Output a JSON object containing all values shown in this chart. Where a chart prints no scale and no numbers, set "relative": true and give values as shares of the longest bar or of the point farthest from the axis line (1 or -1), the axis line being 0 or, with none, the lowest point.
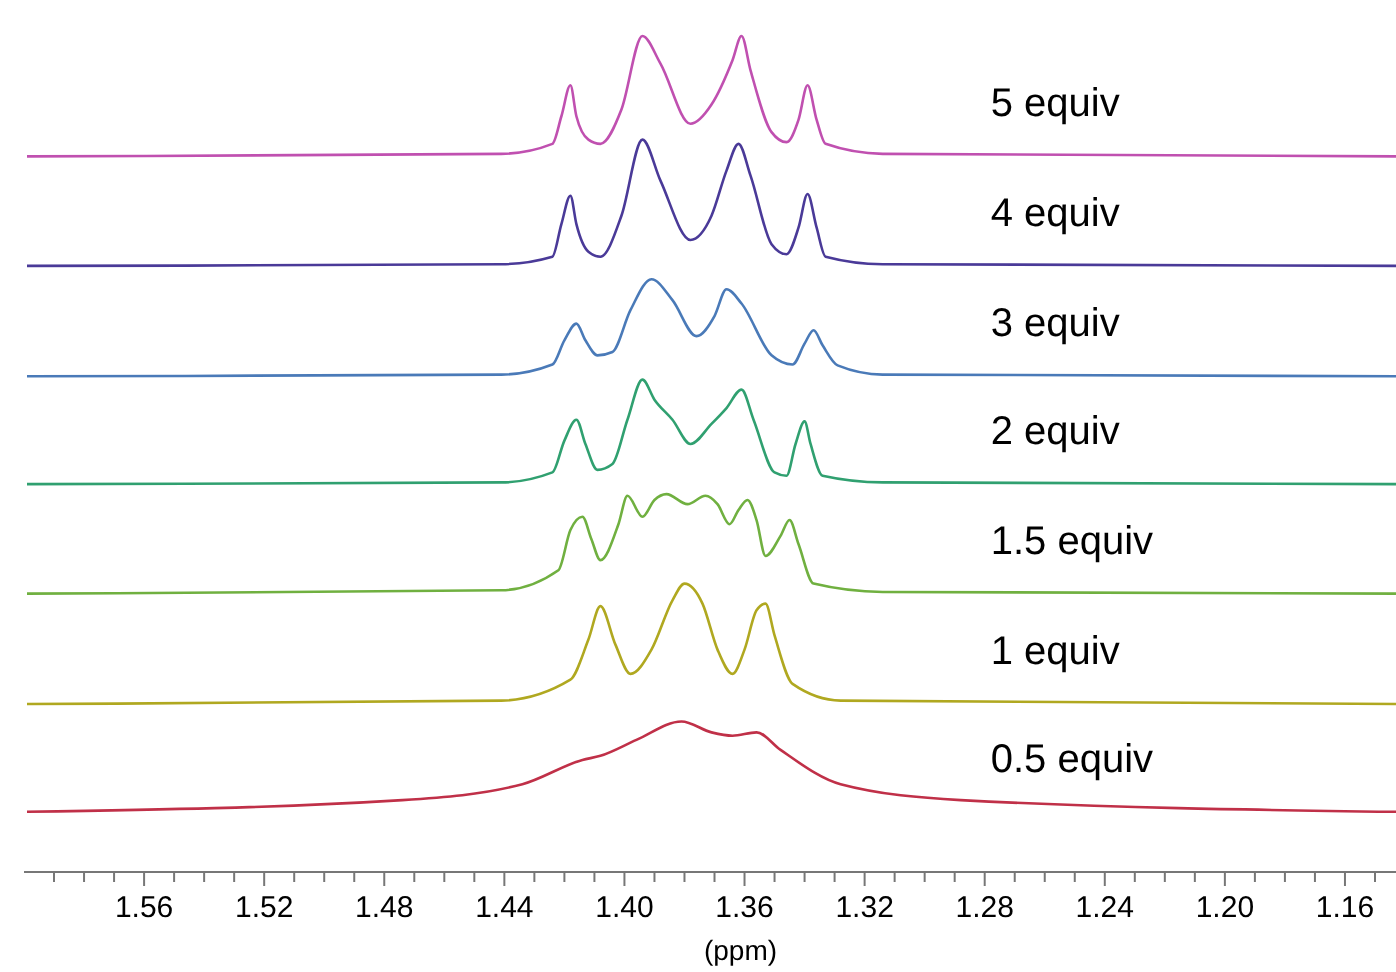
{
  "chart_data": {
    "type": "line",
    "relative": true,
    "xlabel": "(ppm)",
    "xlim": [
      1.6,
      1.143
    ],
    "xticks": [
      {
        "value": 1.59,
        "label": null
      },
      {
        "value": 1.58,
        "label": null
      },
      {
        "value": 1.57,
        "label": null
      },
      {
        "value": 1.56,
        "label": "1.56"
      },
      {
        "value": 1.55,
        "label": null
      },
      {
        "value": 1.54,
        "label": null
      },
      {
        "value": 1.53,
        "label": null
      },
      {
        "value": 1.52,
        "label": "1.52"
      },
      {
        "value": 1.51,
        "label": null
      },
      {
        "value": 1.5,
        "label": null
      },
      {
        "value": 1.49,
        "label": null
      },
      {
        "value": 1.48,
        "label": "1.48"
      },
      {
        "value": 1.47,
        "label": null
      },
      {
        "value": 1.46,
        "label": null
      },
      {
        "value": 1.45,
        "label": null
      },
      {
        "value": 1.44,
        "label": "1.44"
      },
      {
        "value": 1.43,
        "label": null
      },
      {
        "value": 1.42,
        "label": null
      },
      {
        "value": 1.41,
        "label": null
      },
      {
        "value": 1.4,
        "label": "1.40"
      },
      {
        "value": 1.39,
        "label": null
      },
      {
        "value": 1.38,
        "label": null
      },
      {
        "value": 1.37,
        "label": null
      },
      {
        "value": 1.36,
        "label": "1.36"
      },
      {
        "value": 1.35,
        "label": null
      },
      {
        "value": 1.34,
        "label": null
      },
      {
        "value": 1.33,
        "label": null
      },
      {
        "value": 1.32,
        "label": "1.32"
      },
      {
        "value": 1.31,
        "label": null
      },
      {
        "value": 1.3,
        "label": null
      },
      {
        "value": 1.29,
        "label": null
      },
      {
        "value": 1.28,
        "label": "1.28"
      },
      {
        "value": 1.27,
        "label": null
      },
      {
        "value": 1.26,
        "label": null
      },
      {
        "value": 1.25,
        "label": null
      },
      {
        "value": 1.24,
        "label": "1.24"
      },
      {
        "value": 1.23,
        "label": null
      },
      {
        "value": 1.22,
        "label": null
      },
      {
        "value": 1.21,
        "label": null
      },
      {
        "value": 1.2,
        "label": "1.20"
      },
      {
        "value": 1.19,
        "label": null
      },
      {
        "value": 1.18,
        "label": null
      },
      {
        "value": 1.17,
        "label": null
      },
      {
        "value": 1.16,
        "label": "1.16"
      },
      {
        "value": 1.15,
        "label": null
      }
    ],
    "tick_labels": "x",
    "line_style": "solid",
    "series": [
      {
        "name": "5 equiv",
        "color": "#c050b0",
        "x": [
          1.599,
          1.441,
          1.424,
          1.421,
          1.418,
          1.416,
          1.412,
          1.408,
          1.401,
          1.394,
          1.388,
          1.378,
          1.371,
          1.364,
          1.361,
          1.358,
          1.351,
          1.346,
          1.342,
          1.339,
          1.336,
          1.333,
          1.314,
          1.143
        ],
        "values": [
          0.856,
          0.859,
          0.871,
          0.904,
          0.941,
          0.904,
          0.876,
          0.871,
          0.912,
          1,
          0.967,
          0.895,
          0.918,
          0.971,
          1,
          0.959,
          0.885,
          0.873,
          0.9,
          0.941,
          0.9,
          0.871,
          0.859,
          0.856
        ]
      },
      {
        "name": "4 equiv",
        "color": "#4a3a98",
        "x": [
          1.599,
          1.441,
          1.424,
          1.421,
          1.418,
          1.416,
          1.412,
          1.408,
          1.401,
          1.394,
          1.388,
          1.378,
          1.371,
          1.366,
          1.362,
          1.358,
          1.351,
          1.346,
          1.342,
          1.339,
          1.336,
          1.333,
          1.314,
          1.143
        ],
        "values": [
          0.725,
          0.727,
          0.736,
          0.775,
          0.809,
          0.775,
          0.742,
          0.736,
          0.785,
          0.876,
          0.827,
          0.756,
          0.785,
          0.839,
          0.871,
          0.833,
          0.751,
          0.739,
          0.771,
          0.811,
          0.771,
          0.736,
          0.727,
          0.725
        ]
      },
      {
        "name": "3 equiv",
        "color": "#4a7ab8",
        "x": [
          1.599,
          1.441,
          1.424,
          1.42,
          1.416,
          1.413,
          1.409,
          1.404,
          1.398,
          1.391,
          1.384,
          1.376,
          1.37,
          1.366,
          1.361,
          1.351,
          1.344,
          1.34,
          1.337,
          1.334,
          1.329,
          1.314,
          1.143
        ],
        "values": [
          0.593,
          0.595,
          0.607,
          0.636,
          0.656,
          0.636,
          0.618,
          0.622,
          0.672,
          0.709,
          0.684,
          0.641,
          0.665,
          0.697,
          0.68,
          0.618,
          0.607,
          0.632,
          0.648,
          0.63,
          0.606,
          0.595,
          0.593
        ]
      },
      {
        "name": "2 equiv",
        "color": "#30a070",
        "x": [
          1.599,
          1.441,
          1.424,
          1.42,
          1.416,
          1.413,
          1.409,
          1.404,
          1.399,
          1.394,
          1.39,
          1.384,
          1.378,
          1.371,
          1.366,
          1.361,
          1.357,
          1.35,
          1.346,
          1.343,
          1.34,
          1.338,
          1.334,
          1.314,
          1.143
        ],
        "values": [
          0.464,
          0.466,
          0.478,
          0.516,
          0.541,
          0.512,
          0.481,
          0.488,
          0.541,
          0.589,
          0.565,
          0.541,
          0.512,
          0.536,
          0.555,
          0.577,
          0.541,
          0.478,
          0.474,
          0.512,
          0.539,
          0.512,
          0.474,
          0.466,
          0.464
        ]
      },
      {
        "name": "1.5 equiv",
        "color": "#70b040",
        "x": [
          1.599,
          1.441,
          1.422,
          1.418,
          1.414,
          1.411,
          1.408,
          1.402,
          1.399,
          1.394,
          1.39,
          1.386,
          1.379,
          1.373,
          1.369,
          1.365,
          1.362,
          1.359,
          1.356,
          1.353,
          1.348,
          1.345,
          1.342,
          1.337,
          1.314,
          1.143
        ],
        "values": [
          0.333,
          0.337,
          0.361,
          0.409,
          0.425,
          0.398,
          0.373,
          0.416,
          0.45,
          0.425,
          0.445,
          0.452,
          0.44,
          0.45,
          0.44,
          0.416,
          0.433,
          0.445,
          0.421,
          0.378,
          0.402,
          0.421,
          0.392,
          0.345,
          0.335,
          0.333
        ]
      },
      {
        "name": "1 equiv",
        "color": "#b0a820",
        "x": [
          1.599,
          1.441,
          1.418,
          1.412,
          1.408,
          1.403,
          1.398,
          1.391,
          1.384,
          1.38,
          1.374,
          1.369,
          1.364,
          1.36,
          1.356,
          1.353,
          1.35,
          1.344,
          1.328,
          1.143
        ],
        "values": [
          0.201,
          0.205,
          0.23,
          0.278,
          0.318,
          0.272,
          0.237,
          0.266,
          0.325,
          0.345,
          0.321,
          0.266,
          0.237,
          0.266,
          0.313,
          0.321,
          0.283,
          0.225,
          0.205,
          0.201
        ]
      },
      {
        "name": "0.5 equiv",
        "color": "#c03048",
        "x": [
          1.599,
          1.474,
          1.434,
          1.414,
          1.408,
          1.396,
          1.381,
          1.371,
          1.364,
          1.356,
          1.348,
          1.328,
          1.288,
          1.143
        ],
        "values": [
          0.072,
          0.086,
          0.105,
          0.134,
          0.139,
          0.158,
          0.18,
          0.167,
          0.163,
          0.167,
          0.146,
          0.105,
          0.086,
          0.072
        ]
      }
    ]
  }
}
